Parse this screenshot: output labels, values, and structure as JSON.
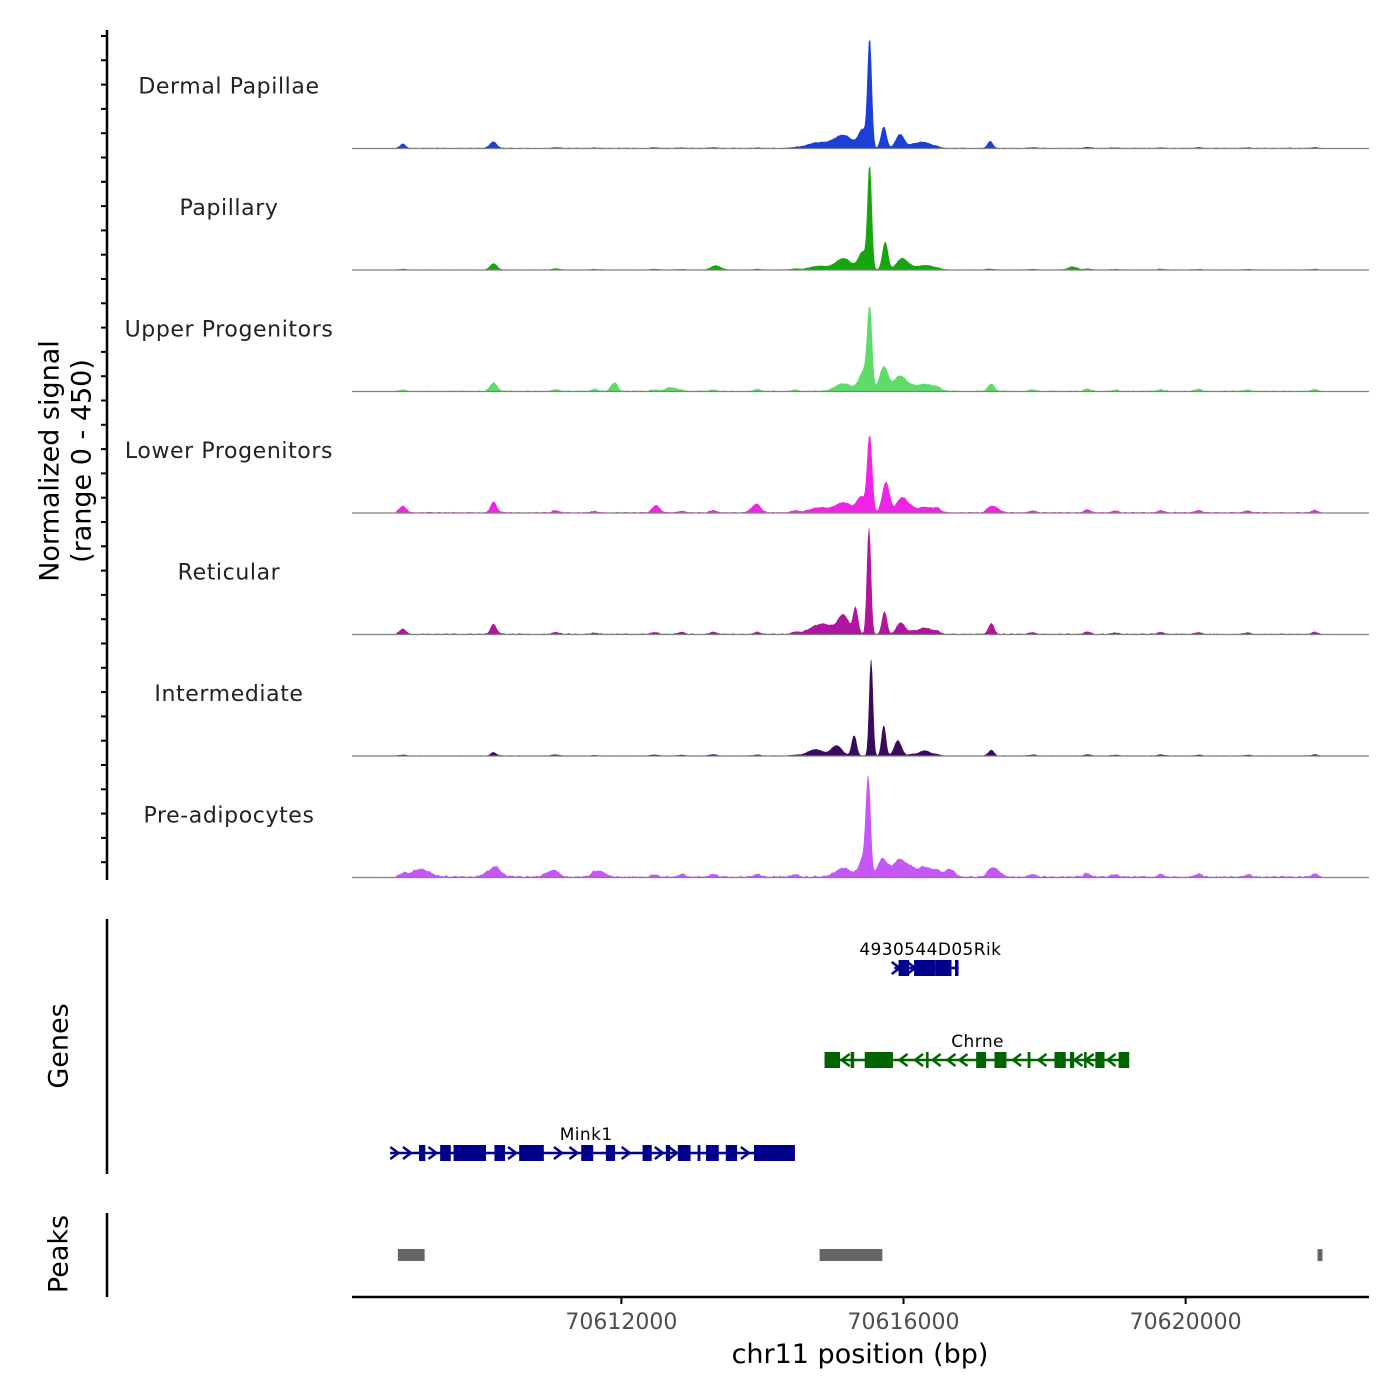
{
  "chart_data": {
    "type": "area",
    "title": "",
    "ylabel_signal": [
      "Normalized signal",
      "(range 0 - 450)"
    ],
    "ylabel_genes": "Genes",
    "ylabel_peaks": "Peaks",
    "xlabel": "chr11 position (bp)",
    "xlim": [
      70608180,
      70622600
    ],
    "ylim": [
      0,
      450
    ],
    "x_ticks": [
      {
        "value": 70612000,
        "label": "70612000"
      },
      {
        "value": 70616000,
        "label": "70616000"
      },
      {
        "value": 70620000,
        "label": "70620000"
      }
    ],
    "bump_centers": [
      70608900,
      70610230,
      70611070,
      70611620,
      70612470,
      70612850,
      70613300,
      70613930,
      70614460,
      70616110,
      70616480,
      70617220,
      70617830,
      70618610,
      70619000,
      70619650,
      70620180,
      70620880,
      70621830
    ],
    "tracks": [
      {
        "name": "Dermal Papillae",
        "color": "#1c3fd8",
        "peaks": [
          [
            70615520,
            420,
            34
          ],
          [
            70615420,
            70,
            70
          ],
          [
            70615720,
            85,
            45
          ],
          [
            70615950,
            55,
            70
          ],
          [
            70615150,
            50,
            150
          ],
          [
            70614800,
            22,
            200
          ],
          [
            70616270,
            25,
            140
          ],
          [
            70610180,
            25,
            55
          ],
          [
            70608900,
            14,
            40
          ],
          [
            70617230,
            22,
            40
          ]
        ],
        "bumps": [
          4,
          2,
          3,
          2,
          3,
          2,
          3,
          2,
          2,
          5,
          4,
          6,
          3,
          4,
          2,
          2,
          3,
          2,
          3
        ],
        "noise": 3
      },
      {
        "name": "Papillary",
        "color": "#17a50f",
        "peaks": [
          [
            70615520,
            400,
            34
          ],
          [
            70615420,
            70,
            70
          ],
          [
            70615740,
            110,
            45
          ],
          [
            70615980,
            45,
            90
          ],
          [
            70615150,
            45,
            130
          ],
          [
            70614800,
            15,
            160
          ],
          [
            70616300,
            18,
            150
          ],
          [
            70610180,
            22,
            55
          ],
          [
            70613350,
            14,
            80
          ],
          [
            70618400,
            12,
            80
          ]
        ],
        "bumps": [
          3,
          4,
          5,
          2,
          3,
          2,
          4,
          3,
          4,
          5,
          3,
          4,
          3,
          4,
          2,
          3,
          2,
          2,
          3
        ],
        "noise": 2
      },
      {
        "name": "Upper Progenitors",
        "color": "#5edc6a",
        "peaks": [
          [
            70615520,
            300,
            38
          ],
          [
            70615440,
            80,
            80
          ],
          [
            70615720,
            95,
            70
          ],
          [
            70615950,
            60,
            110
          ],
          [
            70615150,
            30,
            140
          ],
          [
            70616300,
            28,
            160
          ],
          [
            70610180,
            30,
            55
          ],
          [
            70611900,
            34,
            55
          ],
          [
            70612700,
            15,
            90
          ],
          [
            70617250,
            20,
            50
          ]
        ],
        "bumps": [
          5,
          6,
          7,
          8,
          5,
          4,
          6,
          7,
          5,
          6,
          8,
          10,
          6,
          9,
          5,
          6,
          8,
          5,
          7
        ],
        "noise": 4
      },
      {
        "name": "Lower Progenitors",
        "color": "#f024e6",
        "peaks": [
          [
            70615520,
            300,
            40
          ],
          [
            70615400,
            60,
            70
          ],
          [
            70615750,
            120,
            60
          ],
          [
            70615980,
            60,
            90
          ],
          [
            70615150,
            40,
            140
          ],
          [
            70614800,
            20,
            160
          ],
          [
            70616300,
            22,
            150
          ],
          [
            70610180,
            38,
            45
          ],
          [
            70608900,
            20,
            60
          ],
          [
            70612500,
            22,
            60
          ],
          [
            70613900,
            25,
            80
          ],
          [
            70617300,
            20,
            80
          ]
        ],
        "bumps": [
          6,
          8,
          9,
          6,
          8,
          7,
          9,
          10,
          8,
          10,
          12,
          14,
          8,
          12,
          8,
          9,
          10,
          8,
          10
        ],
        "noise": 4
      },
      {
        "name": "Reticular",
        "color": "#b1149e",
        "peaks": [
          [
            70615510,
            420,
            32
          ],
          [
            70615320,
            100,
            40
          ],
          [
            70615730,
            90,
            40
          ],
          [
            70615150,
            70,
            90
          ],
          [
            70614850,
            40,
            200
          ],
          [
            70615960,
            45,
            70
          ],
          [
            70616300,
            25,
            120
          ],
          [
            70610180,
            35,
            45
          ],
          [
            70617250,
            35,
            40
          ],
          [
            70608900,
            15,
            50
          ]
        ],
        "bumps": [
          6,
          7,
          8,
          5,
          7,
          8,
          9,
          8,
          7,
          9,
          10,
          10,
          7,
          9,
          6,
          8,
          7,
          6,
          8
        ],
        "noise": 4
      },
      {
        "name": "Intermediate",
        "color": "#3a0a5e",
        "peaks": [
          [
            70615540,
            380,
            30
          ],
          [
            70615720,
            120,
            35
          ],
          [
            70615920,
            60,
            60
          ],
          [
            70615300,
            80,
            40
          ],
          [
            70615050,
            40,
            90
          ],
          [
            70614750,
            25,
            130
          ],
          [
            70616300,
            20,
            100
          ],
          [
            70617250,
            18,
            40
          ],
          [
            70610180,
            12,
            40
          ]
        ],
        "bumps": [
          3,
          3,
          4,
          2,
          4,
          3,
          5,
          4,
          3,
          5,
          4,
          6,
          4,
          5,
          3,
          4,
          3,
          3,
          4
        ],
        "noise": 2
      },
      {
        "name": "Pre-adipocytes",
        "color": "#c557f8",
        "peaks": [
          [
            70615500,
            380,
            38
          ],
          [
            70615420,
            70,
            60
          ],
          [
            70615700,
            70,
            80
          ],
          [
            70615950,
            70,
            120
          ],
          [
            70615150,
            35,
            140
          ],
          [
            70616300,
            40,
            150
          ],
          [
            70616650,
            30,
            80
          ],
          [
            70617300,
            30,
            90
          ],
          [
            70609150,
            30,
            160
          ],
          [
            70610180,
            30,
            120
          ],
          [
            70611000,
            20,
            100
          ],
          [
            70611700,
            20,
            100
          ]
        ],
        "bumps": [
          10,
          14,
          12,
          10,
          9,
          10,
          11,
          12,
          10,
          12,
          14,
          16,
          10,
          14,
          10,
          12,
          11,
          10,
          12
        ],
        "noise": 7
      }
    ],
    "genes": [
      {
        "name": "4930544D05Rik",
        "color": "#00008b",
        "strand": "+",
        "row": 0,
        "start": 70615870,
        "end": 70616780,
        "label_pos": 70616380,
        "exons": [
          [
            70615930,
            70616080
          ],
          [
            70616150,
            70616450
          ],
          [
            70616450,
            70616680
          ],
          [
            70616730,
            70616780
          ]
        ],
        "arrows": [
          70615890,
          70616110
        ]
      },
      {
        "name": "Chrne",
        "color": "#006400",
        "strand": "-",
        "row": 1,
        "start": 70614880,
        "end": 70619200,
        "label_pos": 70617050,
        "exons": [
          [
            70614880,
            70615100
          ],
          [
            70615250,
            70615300
          ],
          [
            70615450,
            70615850
          ],
          [
            70616320,
            70616340
          ],
          [
            70617030,
            70617170
          ],
          [
            70617290,
            70617460
          ],
          [
            70617760,
            70617800
          ],
          [
            70618140,
            70618300
          ],
          [
            70618360,
            70618420
          ],
          [
            70618560,
            70618580
          ],
          [
            70618720,
            70618850
          ],
          [
            70619050,
            70619200
          ]
        ],
        "arrows": [
          70615180,
          70616000,
          70616220,
          70616470,
          70616680,
          70616850,
          70617610,
          70617970,
          70618480,
          70618640,
          70618950
        ]
      },
      {
        "name": "Mink1",
        "color": "#00008b",
        "strand": "+",
        "row": 2,
        "start": 70608720,
        "end": 70614460,
        "label_pos": 70611500,
        "exons": [
          [
            70609130,
            70609220
          ],
          [
            70609430,
            70609580
          ],
          [
            70609620,
            70610080
          ],
          [
            70610200,
            70610350
          ],
          [
            70610550,
            70610900
          ],
          [
            70611430,
            70611600
          ],
          [
            70611780,
            70611910
          ],
          [
            70612300,
            70612430
          ],
          [
            70612630,
            70612690
          ],
          [
            70612800,
            70612980
          ],
          [
            70613080,
            70613120
          ],
          [
            70613200,
            70613380
          ],
          [
            70613480,
            70613640
          ],
          [
            70613880,
            70614460
          ]
        ],
        "arrows": [
          70608780,
          70608960,
          70609320,
          70610450,
          70611100,
          70611320,
          70612060,
          70612530,
          70612730,
          70613750
        ]
      }
    ],
    "peaks_track": [
      [
        70608830,
        70609210
      ],
      [
        70614810,
        70615700
      ],
      [
        70621870,
        70621940
      ]
    ]
  }
}
